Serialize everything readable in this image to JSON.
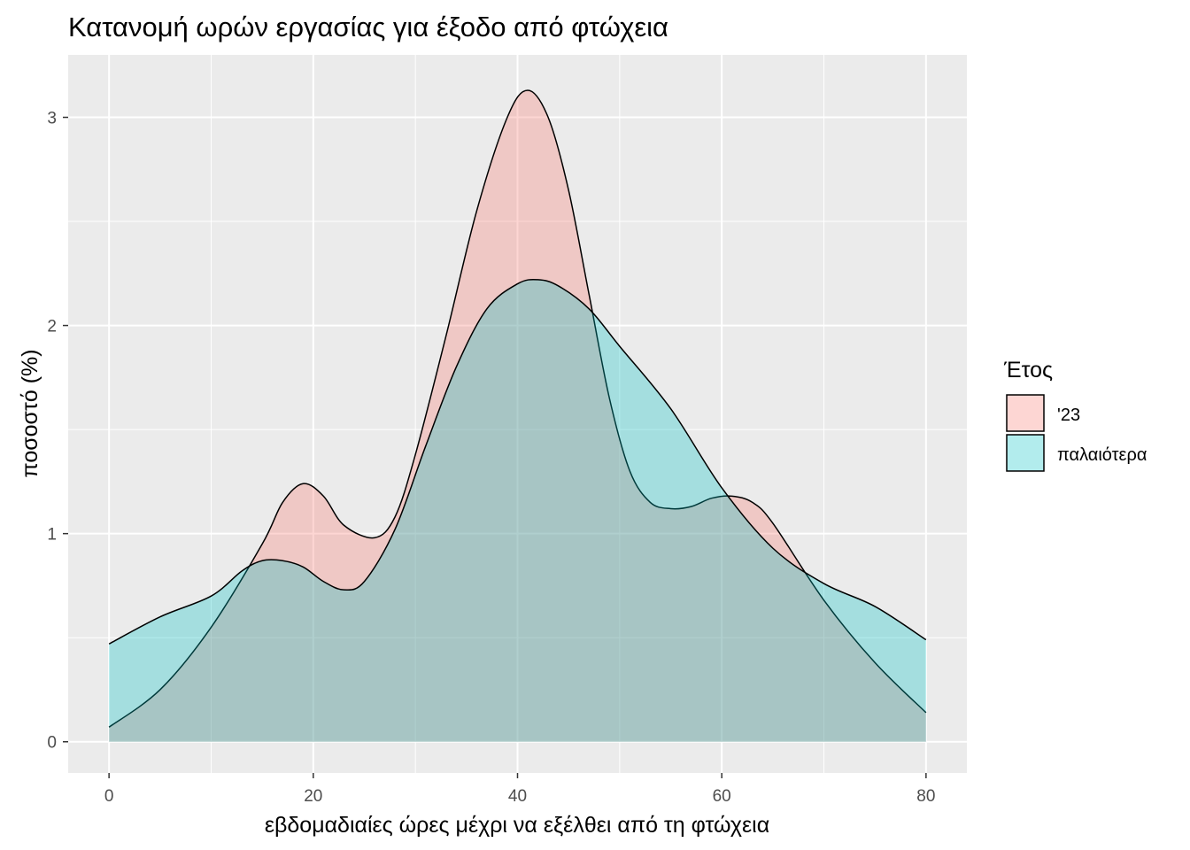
{
  "chart_data": {
    "type": "area",
    "title": "Κατανομή ωρών εργασίας για έξοδο από φτώχεια",
    "xlabel": "εβδομαδιαίες ώρες μέχρι να εξέλθει από τη φτώχεια",
    "ylabel": "ποσοστό (%)",
    "xlim": [
      -4,
      84
    ],
    "ylim": [
      -0.15,
      3.3
    ],
    "x_ticks": [
      0,
      20,
      40,
      60,
      80
    ],
    "x_tick_labels": [
      "0",
      "20",
      "40",
      "60",
      "80"
    ],
    "y_ticks": [
      0,
      1,
      2,
      3
    ],
    "y_tick_labels": [
      "0",
      "1",
      "2",
      "3"
    ],
    "grid": true,
    "legend": {
      "title": "Έτος",
      "position": "right"
    },
    "series": [
      {
        "name": "'23",
        "color": "#F8766D",
        "fill_opacity": 0.3,
        "x": [
          0,
          5,
          10,
          15,
          17,
          19,
          21,
          23,
          26,
          28,
          30,
          33,
          36,
          39,
          41,
          43,
          45,
          47,
          49,
          51,
          53,
          55,
          57,
          59,
          61,
          63,
          65,
          70,
          75,
          80
        ],
        "values": [
          0.07,
          0.25,
          0.55,
          0.95,
          1.15,
          1.24,
          1.18,
          1.04,
          0.98,
          1.08,
          1.38,
          1.95,
          2.55,
          3.0,
          3.13,
          3.0,
          2.65,
          2.15,
          1.65,
          1.3,
          1.15,
          1.12,
          1.13,
          1.17,
          1.18,
          1.15,
          1.05,
          0.68,
          0.38,
          0.14
        ]
      },
      {
        "name": "παλαιότερα",
        "color": "#00BFC4",
        "fill_opacity": 0.3,
        "x": [
          0,
          5,
          10,
          13,
          15,
          17,
          19,
          21,
          23,
          25,
          28,
          31,
          34,
          37,
          40,
          42,
          44,
          47,
          50,
          55,
          60,
          65,
          70,
          75,
          80
        ],
        "values": [
          0.47,
          0.6,
          0.7,
          0.82,
          0.87,
          0.87,
          0.84,
          0.77,
          0.73,
          0.77,
          1.02,
          1.42,
          1.8,
          2.08,
          2.2,
          2.22,
          2.19,
          2.08,
          1.9,
          1.6,
          1.22,
          0.93,
          0.76,
          0.65,
          0.49
        ]
      }
    ]
  }
}
